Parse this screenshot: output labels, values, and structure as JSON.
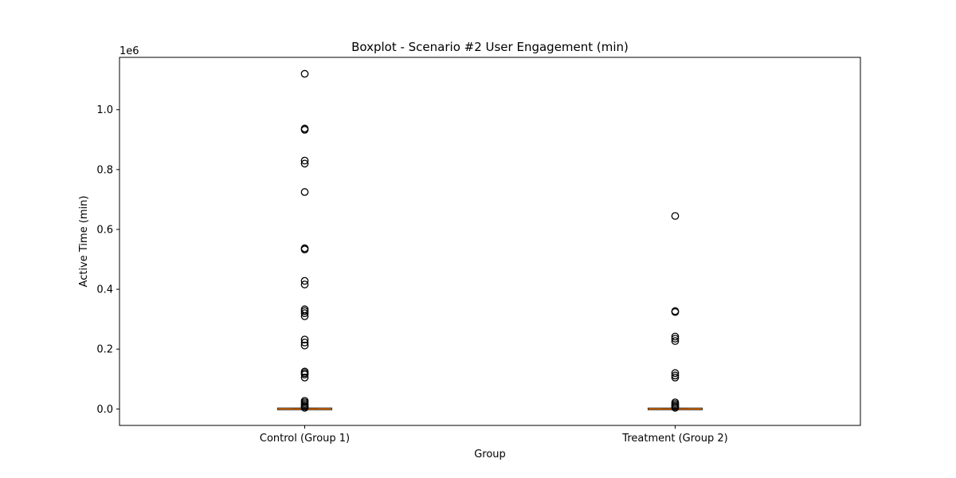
{
  "chart_data": {
    "type": "box",
    "title": "Boxplot - Scenario #2 User Engagement (min)",
    "xlabel": "Group",
    "ylabel": "Active Time (min)",
    "y_offset_label": "1e6",
    "y_scale_factor": 1000000,
    "ylim": [
      -0.055,
      1.175
    ],
    "yticks": [
      "0.0",
      "0.2",
      "0.4",
      "0.6",
      "0.8",
      "1.0"
    ],
    "categories": [
      "Control (Group 1)",
      "Treatment (Group 2)"
    ],
    "grid": false,
    "colors": {
      "median": "#ff7f0e",
      "box": "#000000",
      "outlier_edge": "#000000"
    },
    "series": [
      {
        "category": "Control (Group 1)",
        "q1": 0,
        "median": 0,
        "q3": 0.0004,
        "whisker_low": 0,
        "whisker_high": 0.0008,
        "outliers": [
          1.12,
          0.937,
          0.933,
          0.83,
          0.82,
          0.725,
          0.537,
          0.533,
          0.428,
          0.416,
          0.333,
          0.327,
          0.32,
          0.31,
          0.232,
          0.222,
          0.212,
          0.125,
          0.12,
          0.115,
          0.105,
          0.027,
          0.022,
          0.017,
          0.012,
          0.008,
          0.004
        ]
      },
      {
        "category": "Treatment (Group 2)",
        "q1": 0,
        "median": 0,
        "q3": 0.0003,
        "whisker_low": 0,
        "whisker_high": 0.0006,
        "outliers": [
          0.645,
          0.327,
          0.324,
          0.242,
          0.235,
          0.227,
          0.12,
          0.112,
          0.105,
          0.022,
          0.017,
          0.012,
          0.008,
          0.004
        ]
      }
    ]
  }
}
